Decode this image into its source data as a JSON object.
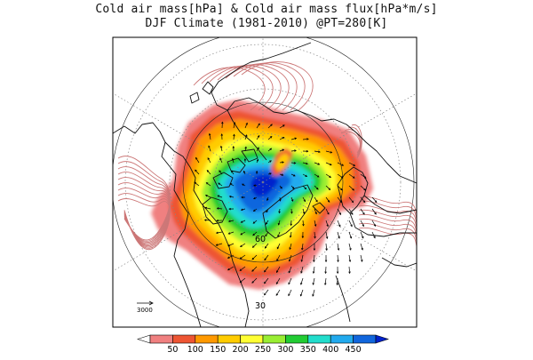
{
  "title": {
    "line1": "Cold air mass[hPa] & Cold air mass flux[hPa*m/s]",
    "line2": "DJF Climate (1981-2010) @PT=280[K]"
  },
  "map": {
    "projection": "north-polar-stereographic",
    "latitude_labels": [
      "60",
      "30"
    ],
    "reference_vector_label": "3000",
    "gridlines": "dotted",
    "coastlines": true
  },
  "colorbar": {
    "ticks": [
      "50",
      "100",
      "150",
      "200",
      "250",
      "300",
      "350",
      "400",
      "450"
    ],
    "colors": [
      "#ffffff",
      "#f08080",
      "#ee5533",
      "#ff9900",
      "#ffcc00",
      "#ffff33",
      "#99ee33",
      "#22cc33",
      "#22ddcc",
      "#22aaee",
      "#1166dd",
      "#0022cc"
    ]
  },
  "overlay": {
    "contour_color": "#cc7777",
    "vector_color": "#000000"
  }
}
